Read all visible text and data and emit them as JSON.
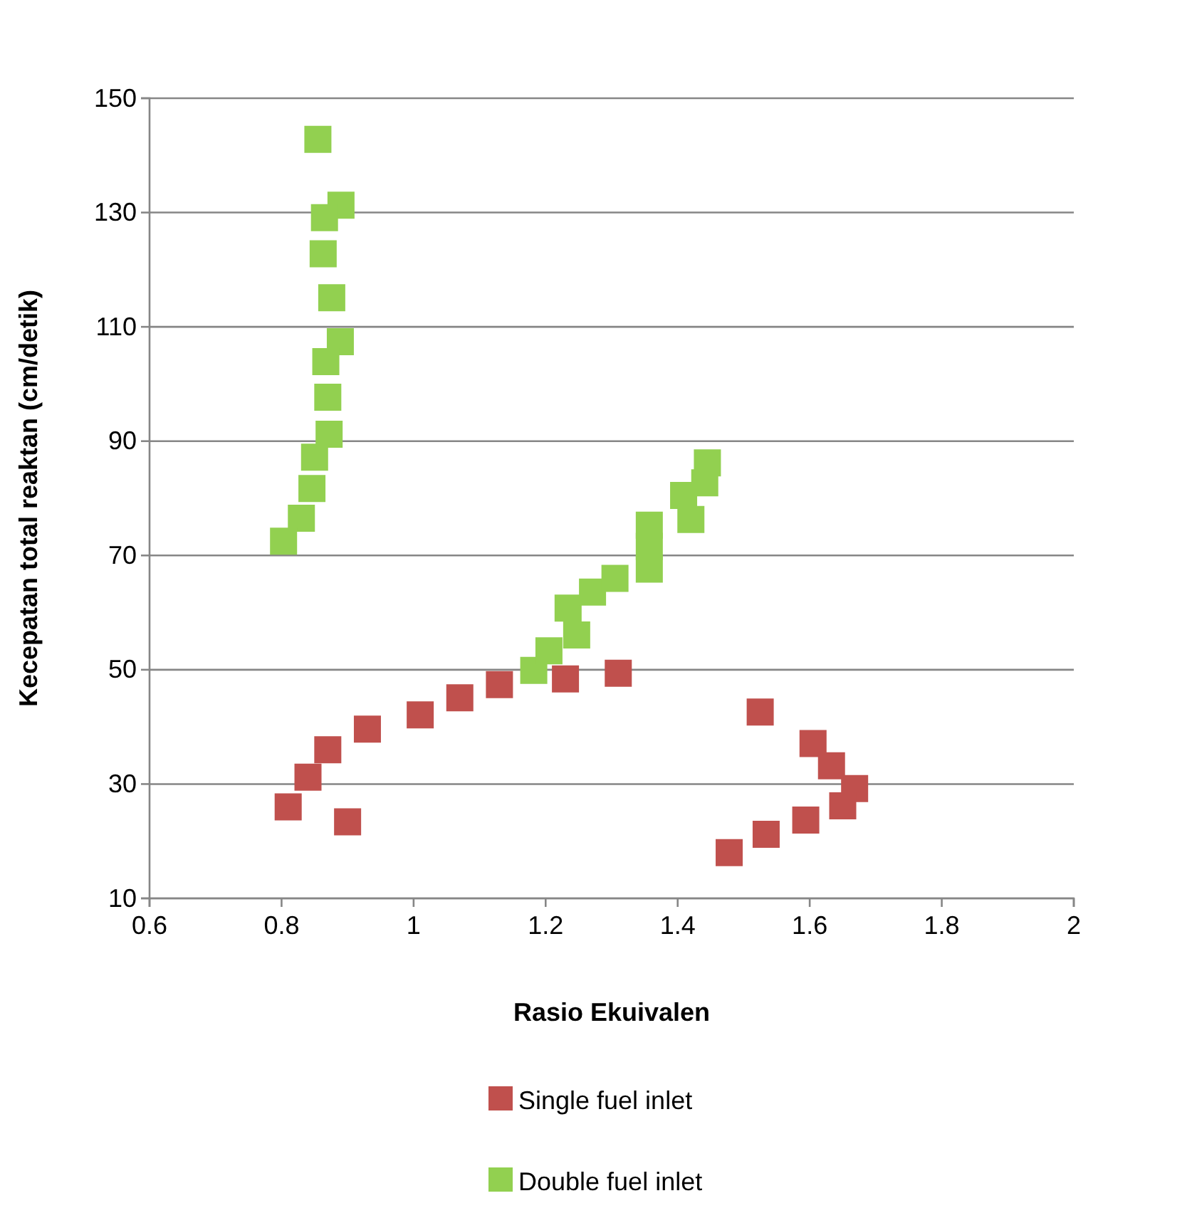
{
  "chart_data": {
    "type": "scatter",
    "xlabel": "Rasio Ekuivalen",
    "ylabel": "Kecepatan total reaktan (cm/detik)",
    "xlim": [
      0.6,
      2
    ],
    "xticks": [
      0.6,
      0.8,
      1,
      1.2,
      1.4,
      1.6,
      1.8,
      2
    ],
    "ylim": [
      10,
      150
    ],
    "yticks": [
      10,
      30,
      50,
      70,
      90,
      110,
      130,
      150
    ],
    "grid": "y",
    "legend": "bottom",
    "marker": "square",
    "series": [
      {
        "name": "Single fuel inlet",
        "color": "#c0504d",
        "x": [
          0.81,
          0.84,
          0.87,
          0.93,
          1.01,
          1.07,
          1.13,
          1.23,
          1.31,
          0.9,
          1.525,
          1.605,
          1.633,
          1.668,
          1.65,
          1.594,
          1.534,
          1.478
        ],
        "values": [
          26,
          31.2,
          36,
          39.6,
          42.1,
          45.1,
          47.4,
          48.4,
          49.4,
          23.4,
          42.6,
          37.1,
          33.2,
          29.2,
          26.2,
          23.7,
          21.2,
          18
        ]
      },
      {
        "name": "Double fuel inlet",
        "color": "#92d050",
        "x": [
          0.855,
          0.89,
          0.865,
          0.863,
          0.876,
          0.889,
          0.867,
          0.87,
          0.872,
          0.85,
          0.846,
          0.83,
          0.803,
          1.182,
          1.205,
          1.247,
          1.234,
          1.271,
          1.305,
          1.357,
          1.357,
          1.357,
          1.409,
          1.42,
          1.441,
          1.445
        ],
        "values": [
          142.8,
          131.3,
          129.1,
          122.8,
          115.1,
          107.4,
          103.9,
          97.7,
          91.2,
          87.2,
          81.7,
          76.5,
          72.5,
          49.9,
          53.3,
          56.1,
          60.8,
          63.6,
          66,
          75.3,
          71.6,
          67.6,
          80.5,
          76.3,
          82.7,
          86.2
        ]
      }
    ]
  }
}
